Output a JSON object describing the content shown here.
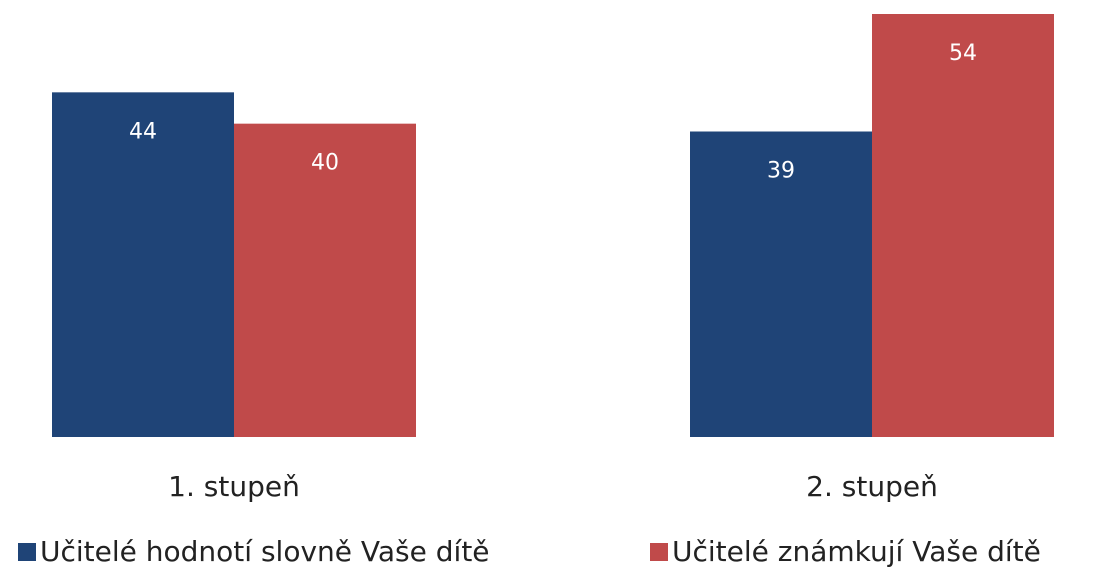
{
  "chart_data": {
    "type": "bar",
    "categories": [
      "1. stupeň",
      "2. stupeň"
    ],
    "series": [
      {
        "name": "Učitelé hodnotí slovně Vaše dítě",
        "color": "#1f4477",
        "values": [
          44,
          39
        ]
      },
      {
        "name": "Učitelé známkují Vaše dítě",
        "color": "#c04a4a",
        "values": [
          40,
          54
        ]
      }
    ]
  }
}
